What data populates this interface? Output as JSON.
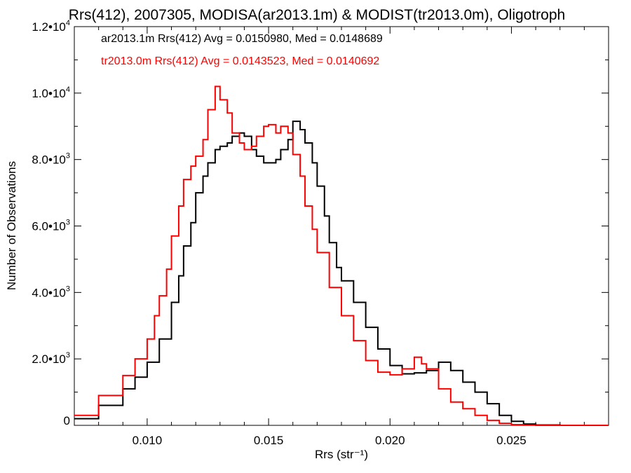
{
  "chart_data": {
    "type": "line",
    "title": "Rrs(412), 2007305, MODISA(ar2013.1m) & MODIST(tr2013.0m), Oligotroph",
    "xlabel": "Rrs (str⁻¹)",
    "ylabel": "Number of Observations",
    "xlim": [
      0.007,
      0.029
    ],
    "ylim": [
      0,
      12000
    ],
    "x_ticks": [
      {
        "value": 0.01,
        "label": "0.010"
      },
      {
        "value": 0.015,
        "label": "0.015"
      },
      {
        "value": 0.02,
        "label": "0.020"
      },
      {
        "value": 0.025,
        "label": "0.025"
      }
    ],
    "y_ticks": [
      {
        "value": 0,
        "mantissa": "0",
        "exp": ""
      },
      {
        "value": 2000,
        "mantissa": "2.0•10",
        "exp": "3"
      },
      {
        "value": 4000,
        "mantissa": "4.0•10",
        "exp": "3"
      },
      {
        "value": 6000,
        "mantissa": "6.0•10",
        "exp": "3"
      },
      {
        "value": 8000,
        "mantissa": "8.0•10",
        "exp": "3"
      },
      {
        "value": 10000,
        "mantissa": "1.0•10",
        "exp": "4"
      },
      {
        "value": 12000,
        "mantissa": "1.2•10",
        "exp": "4"
      }
    ],
    "legend_placement": "top-left",
    "series": [
      {
        "name": "ar2013.1m",
        "legend_text": "ar2013.1m Rrs(412) Avg = 0.0150980, Med = 0.0148689",
        "color": "#000000",
        "x": [
          0.007,
          0.008,
          0.009,
          0.0095,
          0.01,
          0.0105,
          0.011,
          0.0113,
          0.0115,
          0.0118,
          0.012,
          0.0123,
          0.0125,
          0.0128,
          0.013,
          0.0133,
          0.0135,
          0.0138,
          0.014,
          0.0143,
          0.0145,
          0.0148,
          0.015,
          0.0153,
          0.0155,
          0.0158,
          0.016,
          0.0163,
          0.0165,
          0.0168,
          0.017,
          0.0173,
          0.0175,
          0.0178,
          0.018,
          0.0185,
          0.019,
          0.0195,
          0.02,
          0.0205,
          0.021,
          0.0215,
          0.022,
          0.0225,
          0.023,
          0.0235,
          0.024,
          0.0245,
          0.025,
          0.0255,
          0.026,
          0.027,
          0.028,
          0.029
        ],
        "y": [
          200,
          600,
          1100,
          1450,
          1900,
          2600,
          3700,
          4500,
          5400,
          6100,
          7000,
          7500,
          7900,
          8300,
          8400,
          8500,
          8700,
          8800,
          8700,
          8300,
          8100,
          7900,
          7900,
          8000,
          8300,
          8600,
          9150,
          8900,
          8500,
          7900,
          7200,
          6300,
          5500,
          4750,
          4350,
          3700,
          2950,
          2300,
          1800,
          1550,
          1580,
          1650,
          1900,
          1650,
          1300,
          1000,
          650,
          300,
          120,
          40,
          10,
          0,
          0,
          0
        ]
      },
      {
        "name": "tr2013.0m",
        "legend_text": "tr2013.0m Rrs(412) Avg = 0.0143523, Med = 0.0140692",
        "color": "#ff0000",
        "x": [
          0.007,
          0.008,
          0.009,
          0.0095,
          0.01,
          0.0103,
          0.0105,
          0.0108,
          0.011,
          0.0113,
          0.0115,
          0.0118,
          0.012,
          0.0123,
          0.0125,
          0.0128,
          0.013,
          0.0133,
          0.0135,
          0.0138,
          0.014,
          0.0143,
          0.0145,
          0.0148,
          0.015,
          0.0153,
          0.0155,
          0.0158,
          0.016,
          0.0163,
          0.0165,
          0.0168,
          0.017,
          0.0175,
          0.018,
          0.0185,
          0.019,
          0.0195,
          0.02,
          0.0205,
          0.021,
          0.0213,
          0.0215,
          0.022,
          0.0225,
          0.023,
          0.0235,
          0.024,
          0.0245,
          0.025,
          0.0255,
          0.026,
          0.027,
          0.028,
          0.029
        ],
        "y": [
          300,
          900,
          1500,
          2000,
          2600,
          3300,
          3900,
          4700,
          5700,
          6600,
          7400,
          7800,
          8100,
          8600,
          9500,
          10200,
          9800,
          9400,
          8800,
          8500,
          8300,
          8400,
          8700,
          9000,
          9050,
          8800,
          9000,
          8800,
          8150,
          7500,
          6600,
          5900,
          5200,
          4150,
          3300,
          2550,
          1950,
          1600,
          1520,
          1700,
          2050,
          1850,
          1700,
          1100,
          700,
          500,
          300,
          150,
          60,
          20,
          5,
          0,
          0,
          0,
          0
        ]
      }
    ]
  }
}
